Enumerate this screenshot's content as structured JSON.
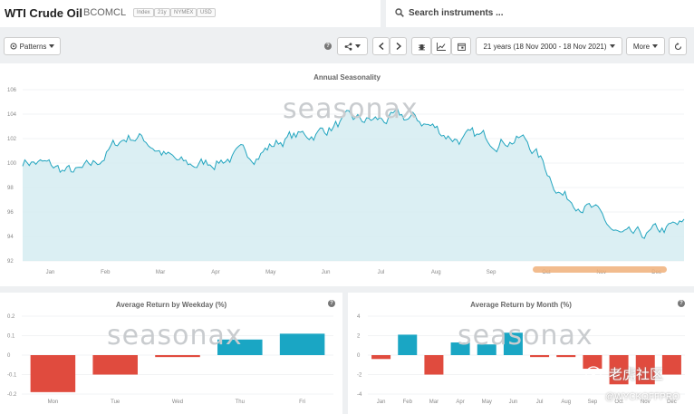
{
  "header": {
    "title": "WTI Crude Oil",
    "code": "BCOMCL",
    "tags": [
      "Index",
      "21y",
      "NYMEX",
      "USD"
    ],
    "search_placeholder": "Search instruments ..."
  },
  "toolbar": {
    "patterns_label": "Patterns",
    "range_label": "21 years (18 Nov 2000 - 18 Nov 2021)",
    "more_label": "More"
  },
  "watermark": "seasonax",
  "overlay": {
    "brand": "老虎社区",
    "handle": "@WYCKOFFPRO"
  },
  "charts": {
    "annual": {
      "title": "Annual Seasonality",
      "y_ticks": [
        "106",
        "104",
        "102",
        "100",
        "98",
        "96",
        "94",
        "92"
      ],
      "x_ticks": [
        "Jan",
        "Feb",
        "Mar",
        "Apr",
        "May",
        "Jun",
        "Jul",
        "Aug",
        "Sep",
        "Oct",
        "Nov",
        "Dec"
      ]
    },
    "weekday": {
      "title": "Average Return by Weekday (%)",
      "y_ticks": [
        "0.2",
        "0.1",
        "0",
        "-0.1",
        "-0.2"
      ]
    },
    "month": {
      "title": "Average Return by Month (%)",
      "y_ticks": [
        "4",
        "2",
        "0",
        "-2",
        "-4"
      ]
    }
  },
  "colors": {
    "positive": "#1aa6c4",
    "negative": "#e04b3e",
    "line": "#22a5bf",
    "area": "#cfe9ef",
    "highlight": "#f0b07a"
  },
  "chart_data": [
    {
      "type": "area",
      "title": "Annual Seasonality",
      "x": [
        "Jan",
        "Feb",
        "Mar",
        "Apr",
        "May",
        "Jun",
        "Jul",
        "Aug",
        "Sep",
        "Oct",
        "Nov",
        "Dec",
        "Dec-end"
      ],
      "values": [
        100.2,
        99.2,
        102.2,
        99.8,
        100.6,
        102.2,
        103.4,
        103.6,
        102.0,
        102.0,
        97.0,
        93.8,
        94.8
      ],
      "ylim": [
        92,
        106
      ]
    },
    {
      "type": "bar",
      "title": "Average Return by Weekday (%)",
      "categories": [
        "Mon",
        "Tue",
        "Wed",
        "Thu",
        "Fri"
      ],
      "values": [
        -0.19,
        -0.1,
        -0.01,
        0.08,
        0.11
      ],
      "ylim": [
        -0.2,
        0.2
      ]
    },
    {
      "type": "bar",
      "title": "Average Return by Month (%)",
      "categories": [
        "Jan",
        "Feb",
        "Mar",
        "Apr",
        "May",
        "Jun",
        "Jul",
        "Aug",
        "Sep",
        "Oct",
        "Nov",
        "Dec"
      ],
      "values": [
        -0.4,
        2.1,
        -2.0,
        1.3,
        1.1,
        2.3,
        -0.2,
        -0.2,
        -1.4,
        -3.0,
        -3.0,
        -2.0
      ],
      "ylim": [
        -4,
        4
      ]
    }
  ]
}
